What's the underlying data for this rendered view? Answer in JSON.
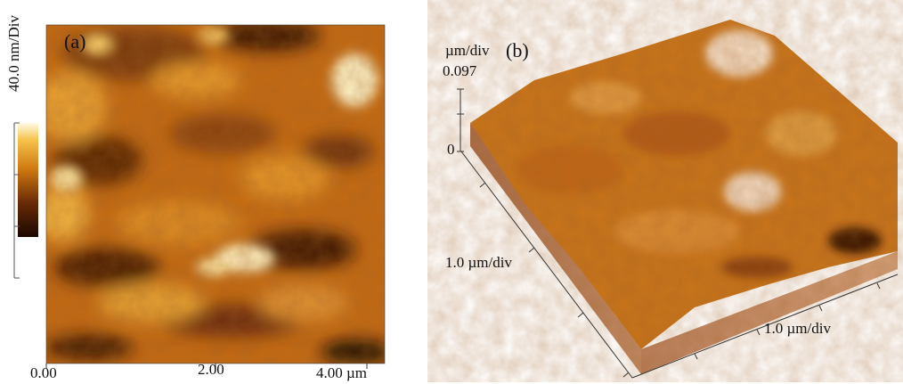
{
  "panel_a": {
    "label": "(a)",
    "colorbar_label": "40.0 nm/Div",
    "x_ticks": [
      "0.00",
      "2.00",
      "4.00 µm"
    ]
  },
  "panel_b": {
    "label": "(b)",
    "z_unit": "µm/div",
    "z_max": "0.097",
    "z_min": "0",
    "y_axis_label": "1.0 µm/div",
    "x_axis_label": "1.0 µm/div"
  },
  "colors": {
    "dark": "#2a0e02",
    "mid": "#c8690c",
    "light": "#fff6d2",
    "side_wall": "#c48f6a"
  }
}
